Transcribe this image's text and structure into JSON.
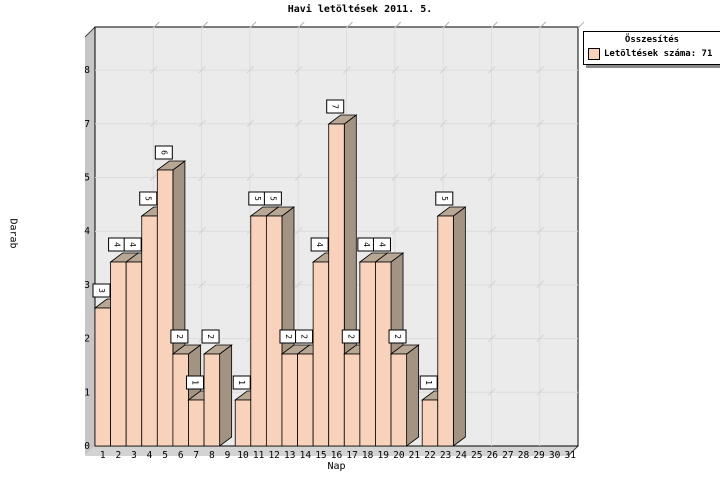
{
  "title": "Havi letöltések 2011. 5.",
  "legend": {
    "title": "Összesítés",
    "label": "Letöltések száma: 71",
    "swatch_color": "#f9d2bc"
  },
  "chart_data": {
    "type": "bar",
    "title": "Havi letöltések 2011. 5.",
    "xlabel": "Nap",
    "ylabel": "Darab",
    "categories": [
      1,
      2,
      3,
      4,
      5,
      6,
      7,
      8,
      9,
      10,
      11,
      12,
      13,
      14,
      15,
      16,
      17,
      18,
      19,
      20,
      21,
      22,
      23,
      24,
      25,
      26,
      27,
      28,
      29,
      30,
      31
    ],
    "values": [
      3,
      4,
      4,
      5,
      6,
      2,
      1,
      2,
      0,
      1,
      5,
      5,
      2,
      2,
      4,
      7,
      2,
      4,
      4,
      2,
      0,
      1,
      5,
      0,
      0,
      0,
      0,
      0,
      0,
      0,
      0
    ],
    "total_downloads": 71,
    "ytick_labels": [
      "0",
      "1",
      "2",
      "3",
      "4",
      "5",
      "7",
      "8"
    ],
    "ylim": [
      0,
      8.7
    ],
    "grid": true,
    "legend_position": "top-right",
    "bar_labels_shown": true,
    "colors": {
      "bar_front": "#f9d2bc",
      "bar_top": "#b7a794",
      "bar_side": "#a39382",
      "plot_bg": "#ebebeb",
      "gridline": "#dcdcdc",
      "grid_hint": "#d2d2d2",
      "bevel": "#c6c6c6",
      "floor": "#d3d3d3",
      "axis": "#000000",
      "label_box_bg": "#ffffff",
      "text": "#000000"
    }
  }
}
